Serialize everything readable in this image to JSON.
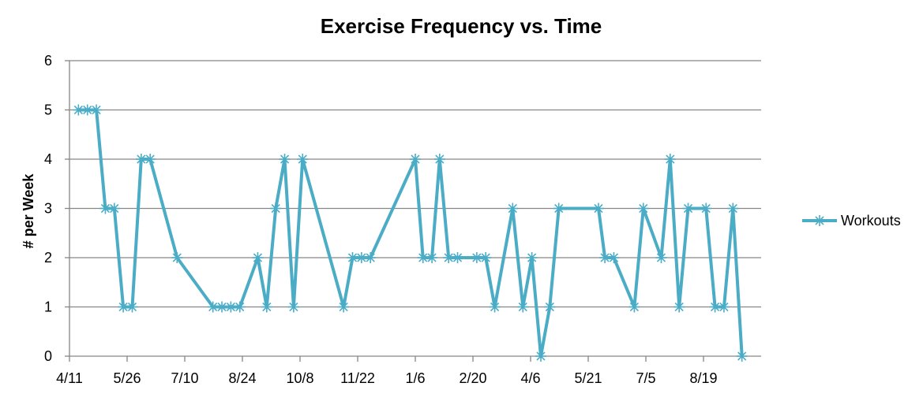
{
  "chart_data": {
    "type": "line",
    "title": "Exercise Frequency vs. Time",
    "xlabel": "",
    "ylabel": "# per Week",
    "ylim": [
      0,
      6
    ],
    "yticks": [
      "0",
      "1",
      "2",
      "3",
      "4",
      "5",
      "6"
    ],
    "xticks": [
      "4/11",
      "5/26",
      "7/10",
      "8/24",
      "10/8",
      "11/22",
      "1/6",
      "2/20",
      "4/6",
      "5/21",
      "7/5",
      "8/19"
    ],
    "xtick_day_offsets": [
      0,
      45,
      90,
      135,
      180,
      225,
      270,
      315,
      360,
      405,
      450,
      495
    ],
    "grid": true,
    "legend_position": "right",
    "series": [
      {
        "name": "Workouts",
        "color": "#4BACC6",
        "marker": "asterisk",
        "x": [
          7,
          14,
          21,
          28,
          35,
          42,
          49,
          56,
          63,
          84,
          112,
          119,
          126,
          133,
          147,
          154,
          161,
          168,
          175,
          182,
          214,
          221,
          228,
          235,
          270,
          276,
          283,
          289,
          296,
          303,
          318,
          325,
          332,
          346,
          354,
          361,
          368,
          375,
          382,
          413,
          418,
          425,
          441,
          448,
          462,
          469,
          476,
          483,
          497,
          504,
          511,
          518,
          525
        ],
        "values": [
          5,
          5,
          5,
          3,
          3,
          1,
          1,
          4,
          4,
          2,
          1,
          1,
          1,
          1,
          2,
          1,
          3,
          4,
          1,
          4,
          1,
          2,
          2,
          2,
          4,
          2,
          2,
          4,
          2,
          2,
          2,
          2,
          1,
          3,
          1,
          2,
          0,
          1,
          3,
          3,
          2,
          2,
          1,
          3,
          2,
          4,
          1,
          3,
          3,
          1,
          1,
          3,
          0
        ]
      }
    ]
  }
}
